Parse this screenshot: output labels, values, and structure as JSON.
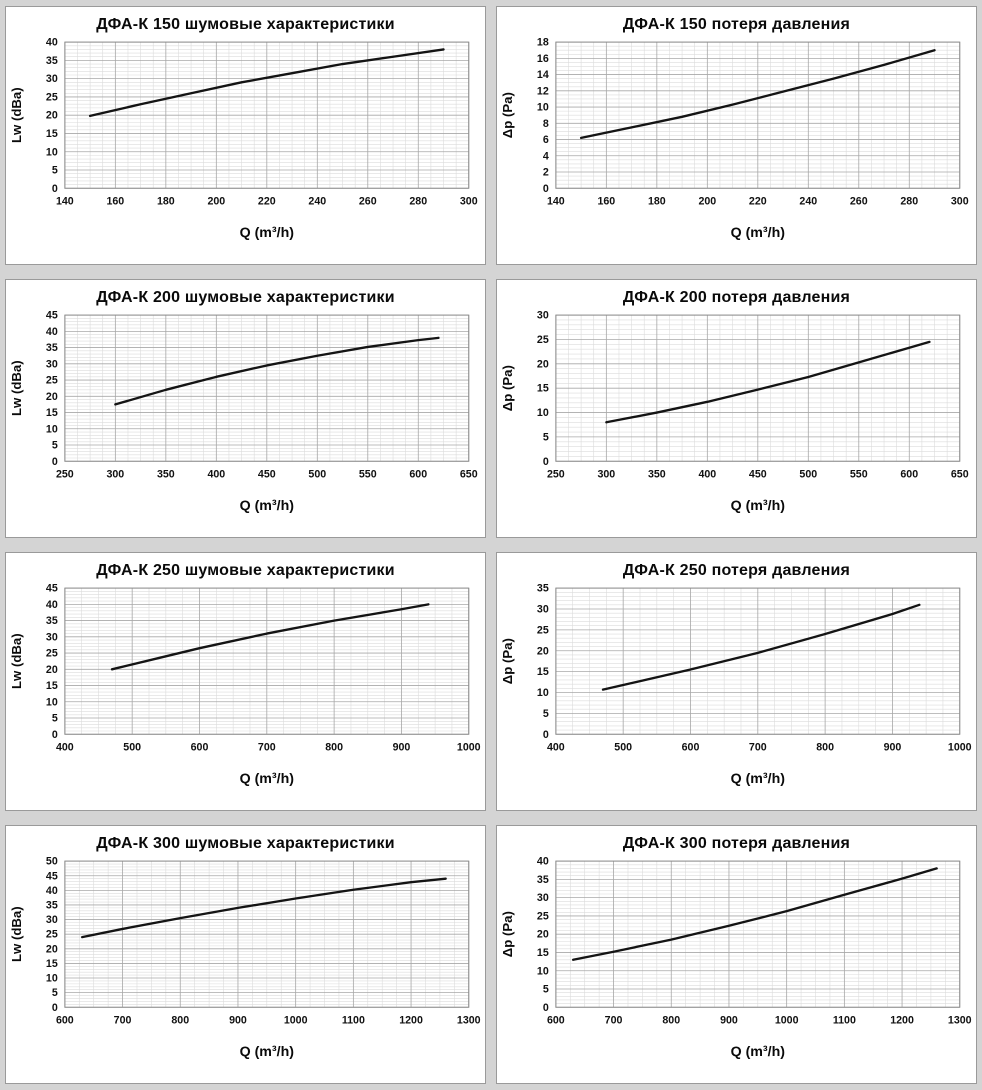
{
  "page": {
    "background_color": "#d4d4d4",
    "panel_background": "#ffffff",
    "panel_border_color": "#9a9a9a",
    "line_color": "#141414",
    "grid_minor_color": "#dcdcdc",
    "grid_major_color": "#a8a8a8",
    "plot_border_color": "#8c8c8c"
  },
  "chart_data": [
    {
      "type": "line",
      "title": "ДФА-К 150 шумовые характеристики",
      "xlabel": "Q (m³/h)",
      "ylabel": "Lw (dBa)",
      "xlim": [
        140,
        300
      ],
      "xstep": 20,
      "xminor": 4,
      "ylim": [
        0,
        40
      ],
      "ystep": 5,
      "yminor": 5,
      "grid": true,
      "legend": "none",
      "x": [
        150,
        170,
        190,
        210,
        230,
        250,
        270,
        290
      ],
      "y": [
        19.8,
        23,
        26,
        29,
        31.5,
        34,
        36,
        38
      ]
    },
    {
      "type": "line",
      "title": "ДФА-К 150 потеря давления",
      "xlabel": "Q (m³/h)",
      "ylabel": "Δp (Pa)",
      "xlim": [
        140,
        300
      ],
      "xstep": 20,
      "xminor": 4,
      "ylim": [
        0,
        18
      ],
      "ystep": 2,
      "yminor": 4,
      "grid": true,
      "legend": "none",
      "x": [
        150,
        170,
        190,
        210,
        230,
        250,
        270,
        290
      ],
      "y": [
        6.2,
        7.5,
        8.8,
        10.3,
        11.9,
        13.5,
        15.2,
        17
      ]
    },
    {
      "type": "line",
      "title": "ДФА-К 200 шумовые характеристики",
      "xlabel": "Q (m³/h)",
      "ylabel": "Lw (dBa)",
      "xlim": [
        250,
        650
      ],
      "xstep": 50,
      "xminor": 4,
      "ylim": [
        0,
        45
      ],
      "ystep": 5,
      "yminor": 5,
      "grid": true,
      "legend": "none",
      "x": [
        300,
        350,
        400,
        450,
        500,
        550,
        600,
        620
      ],
      "y": [
        17.5,
        22,
        26,
        29.5,
        32.5,
        35.2,
        37.3,
        38
      ]
    },
    {
      "type": "line",
      "title": "ДФА-К 200 потеря давления",
      "xlabel": "Q (m³/h)",
      "ylabel": "Δp (Pa)",
      "xlim": [
        250,
        650
      ],
      "xstep": 50,
      "xminor": 4,
      "ylim": [
        0,
        30
      ],
      "ystep": 5,
      "yminor": 5,
      "grid": true,
      "legend": "none",
      "x": [
        300,
        350,
        400,
        450,
        500,
        550,
        600,
        620
      ],
      "y": [
        8,
        10,
        12.2,
        14.7,
        17.3,
        20.3,
        23.3,
        24.5
      ]
    },
    {
      "type": "line",
      "title": "ДФА-К 250 шумовые характеристики",
      "xlabel": "Q (m³/h)",
      "ylabel": "Lw (dBa)",
      "xlim": [
        400,
        1000
      ],
      "xstep": 100,
      "xminor": 4,
      "ylim": [
        0,
        45
      ],
      "ystep": 5,
      "yminor": 5,
      "grid": true,
      "legend": "none",
      "x": [
        470,
        550,
        600,
        700,
        800,
        900,
        940
      ],
      "y": [
        20,
        24,
        26.5,
        31,
        35,
        38.5,
        40
      ]
    },
    {
      "type": "line",
      "title": "ДФА-К 250 потеря давления",
      "xlabel": "Q (m³/h)",
      "ylabel": "Δp (Pa)",
      "xlim": [
        400,
        1000
      ],
      "xstep": 100,
      "xminor": 4,
      "ylim": [
        0,
        35
      ],
      "ystep": 5,
      "yminor": 5,
      "grid": true,
      "legend": "none",
      "x": [
        470,
        500,
        600,
        700,
        800,
        900,
        940
      ],
      "y": [
        10.7,
        11.8,
        15.5,
        19.5,
        24,
        28.8,
        31
      ]
    },
    {
      "type": "line",
      "title": "ДФА-К 300 шумовые характеристики",
      "xlabel": "Q (m³/h)",
      "ylabel": "Lw (dBa)",
      "xlim": [
        600,
        1300
      ],
      "xstep": 100,
      "xminor": 4,
      "ylim": [
        0,
        50
      ],
      "ystep": 5,
      "yminor": 5,
      "grid": true,
      "legend": "none",
      "x": [
        630,
        700,
        800,
        900,
        1000,
        1100,
        1200,
        1260
      ],
      "y": [
        24,
        26.8,
        30.5,
        34,
        37.2,
        40.2,
        42.8,
        44
      ]
    },
    {
      "type": "line",
      "title": "ДФА-К 300 потеря давления",
      "xlabel": "Q (m³/h)",
      "ylabel": "Δp (Pa)",
      "xlim": [
        600,
        1300
      ],
      "xstep": 100,
      "xminor": 4,
      "ylim": [
        0,
        40
      ],
      "ystep": 5,
      "yminor": 5,
      "grid": true,
      "legend": "none",
      "x": [
        630,
        700,
        800,
        900,
        1000,
        1100,
        1200,
        1260
      ],
      "y": [
        13,
        15.2,
        18.5,
        22.3,
        26.3,
        30.8,
        35.2,
        38
      ]
    }
  ]
}
